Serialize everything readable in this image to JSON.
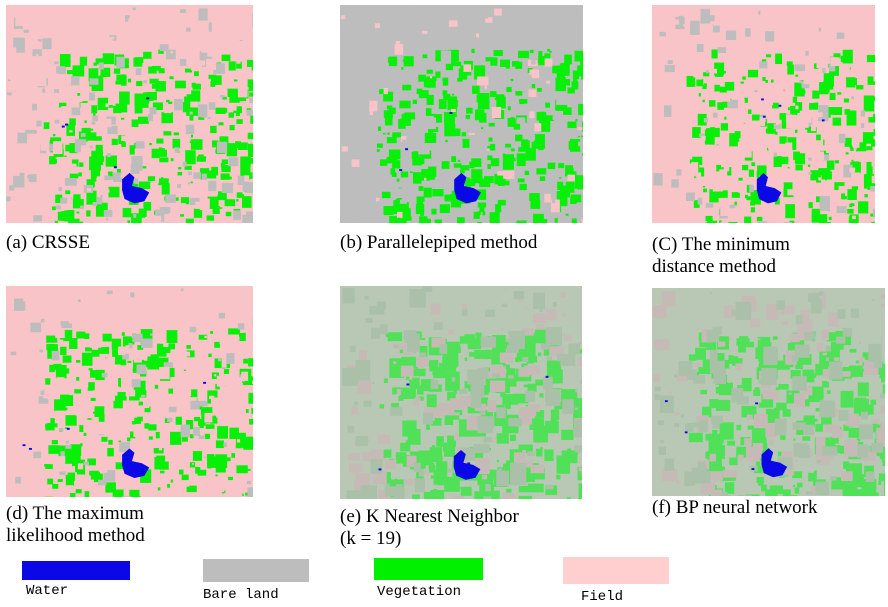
{
  "panels": [
    {
      "caption_lines": [
        "(a) CRSSE"
      ],
      "style": "crisp",
      "tone": "mixed"
    },
    {
      "caption_lines": [
        "(b) Parallelepiped method"
      ],
      "style": "crisp",
      "tone": "gray"
    },
    {
      "caption_lines": [
        "(C) The minimum",
        "distance method"
      ],
      "style": "crisp",
      "tone": "pink"
    },
    {
      "caption_lines": [
        "(d) The maximum",
        "likelihood method"
      ],
      "style": "crisp",
      "tone": "pinkgreen"
    },
    {
      "caption_lines": [
        "(e) K Nearest Neighbor",
        "(k = 19)"
      ],
      "style": "soft",
      "tone": "soft"
    },
    {
      "caption_lines": [
        "(f) BP neural network"
      ],
      "style": "soft",
      "tone": "soft"
    }
  ],
  "legend": [
    {
      "label": "Water",
      "color": "#0a08e6"
    },
    {
      "label": "Bare land",
      "color": "#bdbdbd"
    },
    {
      "label": "Vegetation",
      "color": "#00f000"
    },
    {
      "label": "Field",
      "color": "#ffcfcf"
    }
  ],
  "colors": {
    "water": "#0a08e6",
    "bare_land": "#bdbdbd",
    "vegetation": "#08f008",
    "field": "#f8c4c8"
  }
}
